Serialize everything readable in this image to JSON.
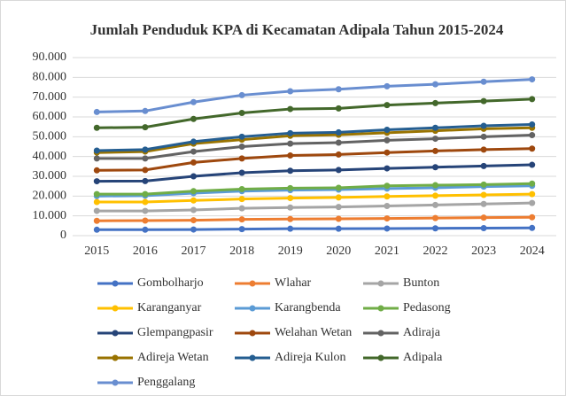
{
  "chart_data": {
    "type": "line",
    "title": "Jumlah Penduduk KPA di Kecamatan Adipala Tahun 2015-2024",
    "categories": [
      "2015",
      "2016",
      "2017",
      "2018",
      "2019",
      "2020",
      "2021",
      "2022",
      "2023",
      "2024"
    ],
    "ylim": [
      0,
      90000
    ],
    "yticks": [
      0,
      {
        "value": 10000,
        "label": "10.000"
      },
      {
        "value": 20000,
        "label": "20.000"
      },
      {
        "value": 30000,
        "label": "30.000"
      },
      {
        "value": 40000,
        "label": "40.000"
      },
      {
        "value": 50000,
        "label": "50.000"
      },
      {
        "value": 60000,
        "label": "60.000"
      },
      {
        "value": 70000,
        "label": "70.000"
      },
      {
        "value": 80000,
        "label": "80.000"
      },
      {
        "value": 90000,
        "label": "90.000"
      }
    ],
    "grid": true,
    "series": [
      {
        "name": "Gombolharjo",
        "color": "#4472C4",
        "values": [
          3000,
          3000,
          3100,
          3300,
          3500,
          3500,
          3600,
          3700,
          3800,
          3900
        ]
      },
      {
        "name": "Wlahar",
        "color": "#ED7D31",
        "values": [
          7500,
          7600,
          7800,
          8200,
          8400,
          8500,
          8700,
          8900,
          9100,
          9300
        ]
      },
      {
        "name": "Bunton",
        "color": "#A5A5A5",
        "values": [
          12500,
          12500,
          13000,
          13800,
          14200,
          14500,
          15000,
          15500,
          16000,
          16500
        ]
      },
      {
        "name": "Karanganyar",
        "color": "#FFC000",
        "values": [
          17000,
          17000,
          17800,
          18500,
          19000,
          19300,
          19800,
          20200,
          20600,
          21000
        ]
      },
      {
        "name": "Karangbenda",
        "color": "#5B9BD5",
        "values": [
          20000,
          20200,
          21500,
          22500,
          23000,
          23300,
          23800,
          24200,
          24800,
          25200
        ]
      },
      {
        "name": "Pedasong",
        "color": "#70AD47",
        "values": [
          21000,
          21000,
          22500,
          23500,
          24000,
          24200,
          25200,
          25500,
          25800,
          26300
        ]
      },
      {
        "name": "Glempangpasir",
        "color": "#264478",
        "values": [
          27500,
          27600,
          30000,
          31800,
          32800,
          33200,
          34000,
          34600,
          35200,
          35800
        ]
      },
      {
        "name": "Welahan Wetan",
        "color": "#9E480E",
        "values": [
          33000,
          33200,
          37000,
          39000,
          40500,
          41000,
          42000,
          42800,
          43500,
          44000
        ]
      },
      {
        "name": "Adiraja",
        "color": "#636363",
        "values": [
          39000,
          39000,
          42500,
          45000,
          46500,
          47000,
          48200,
          49000,
          50000,
          50800
        ]
      },
      {
        "name": "Adireja Wetan",
        "color": "#997300",
        "values": [
          42000,
          42500,
          46500,
          48500,
          50500,
          51000,
          52000,
          53000,
          54000,
          54500
        ]
      },
      {
        "name": "Adireja Kulon",
        "color": "#255E91",
        "values": [
          43000,
          43500,
          47500,
          50000,
          51800,
          52200,
          53500,
          54500,
          55500,
          56200
        ]
      },
      {
        "name": "Adipala",
        "color": "#43682B",
        "values": [
          54500,
          54800,
          59000,
          62000,
          64000,
          64300,
          66000,
          67000,
          68000,
          69000
        ]
      },
      {
        "name": "Penggalang",
        "color": "#698ED0",
        "values": [
          62500,
          63000,
          67500,
          71000,
          73000,
          74000,
          75500,
          76500,
          77800,
          79000
        ]
      }
    ]
  }
}
